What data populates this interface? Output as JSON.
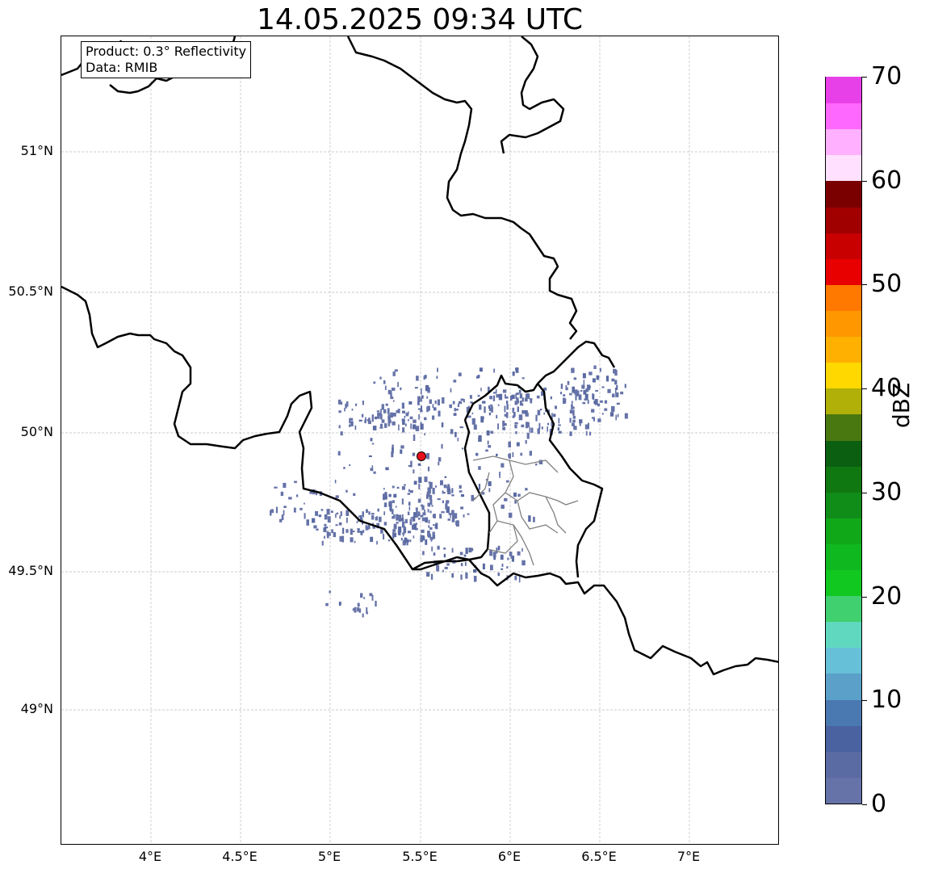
{
  "title": "14.05.2025 09:34 UTC",
  "info": {
    "product": "Product: 0.3° Reflectivity",
    "data": "Data: RMIB"
  },
  "map": {
    "lon_range": [
      3.5,
      7.5
    ],
    "lat_range": [
      48.55,
      51.45
    ],
    "lat_ticks": [
      "51°N",
      "50.5°N",
      "50°N",
      "49.5°N",
      "49°N"
    ],
    "lon_ticks": [
      "4°E",
      "4.5°E",
      "5°E",
      "5.5°E",
      "6°E",
      "6.5°E",
      "7°E"
    ],
    "radar_site": {
      "lon": 5.5,
      "lat": 49.91,
      "color": "#e8101c"
    },
    "gridlines": true
  },
  "colorbar": {
    "label": "dBZ",
    "min": 0,
    "max": 70,
    "ticks": [
      "0",
      "10",
      "20",
      "30",
      "40",
      "50",
      "60",
      "70"
    ],
    "colors": [
      "#6673a8",
      "#5a6aa2",
      "#4a62a0",
      "#4a78b0",
      "#5aa0c8",
      "#66c0d8",
      "#60d8c0",
      "#40d070",
      "#10c820",
      "#10b820",
      "#10a818",
      "#108c18",
      "#107810",
      "#0a6010",
      "#4a7810",
      "#b0b008",
      "#ffd800",
      "#ffb000",
      "#ff9800",
      "#ff7800",
      "#e80000",
      "#c80000",
      "#a00000",
      "#7a0000",
      "#ffe0ff",
      "#ffb0ff",
      "#ff68ff",
      "#e840e8"
    ]
  }
}
